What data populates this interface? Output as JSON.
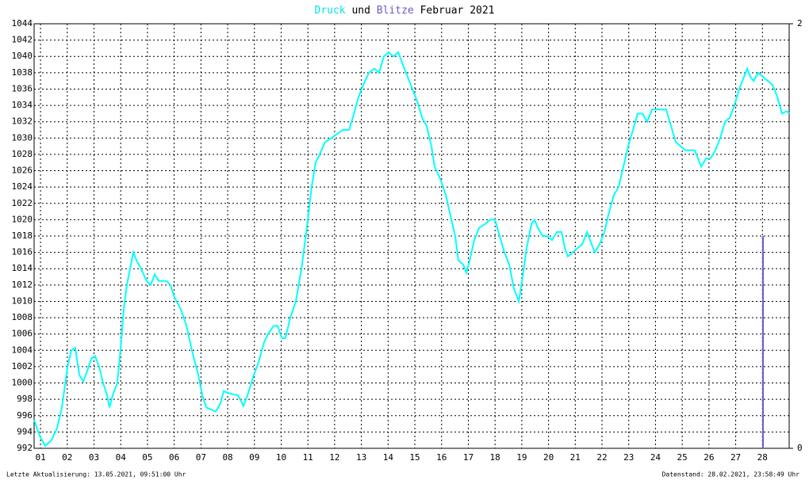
{
  "chart_data": {
    "type": "line",
    "title": "Februar 2021",
    "title_joiner": "und",
    "footer_left": "Letzte Aktualisierung: 13.05.2021, 09:51:00 Uhr",
    "footer_right": "Datenstand: 28.02.2021, 23:58:49 Uhr",
    "grid": true,
    "xlim": [
      0.76,
      29
    ],
    "xticks": [
      {
        "value": 1,
        "label": "01"
      },
      {
        "value": 2,
        "label": "02"
      },
      {
        "value": 3,
        "label": "03"
      },
      {
        "value": 4,
        "label": "04"
      },
      {
        "value": 5,
        "label": "05"
      },
      {
        "value": 6,
        "label": "06"
      },
      {
        "value": 7,
        "label": "07"
      },
      {
        "value": 8,
        "label": "08"
      },
      {
        "value": 9,
        "label": "09"
      },
      {
        "value": 10,
        "label": "10"
      },
      {
        "value": 11,
        "label": "11"
      },
      {
        "value": 12,
        "label": "12"
      },
      {
        "value": 13,
        "label": "13"
      },
      {
        "value": 14,
        "label": "14"
      },
      {
        "value": 15,
        "label": "15"
      },
      {
        "value": 16,
        "label": "16"
      },
      {
        "value": 17,
        "label": "17"
      },
      {
        "value": 18,
        "label": "18"
      },
      {
        "value": 19,
        "label": "19"
      },
      {
        "value": 20,
        "label": "20"
      },
      {
        "value": 21,
        "label": "21"
      },
      {
        "value": 22,
        "label": "22"
      },
      {
        "value": 23,
        "label": "23"
      },
      {
        "value": 24,
        "label": "24"
      },
      {
        "value": 25,
        "label": "25"
      },
      {
        "value": 26,
        "label": "26"
      },
      {
        "value": 27,
        "label": "27"
      },
      {
        "value": 28,
        "label": "28"
      }
    ],
    "ylim": [
      992,
      1044
    ],
    "yticks": [
      992,
      994,
      996,
      998,
      1000,
      1002,
      1004,
      1006,
      1008,
      1010,
      1012,
      1014,
      1016,
      1018,
      1020,
      1022,
      1024,
      1026,
      1028,
      1030,
      1032,
      1034,
      1036,
      1038,
      1040,
      1042,
      1044
    ],
    "y2lim": [
      0,
      2
    ],
    "y2ticks": [
      0,
      2
    ],
    "x": [
      0.76,
      0.97,
      1.18,
      1.41,
      1.62,
      1.8,
      2.01,
      2.15,
      2.3,
      2.45,
      2.6,
      2.75,
      2.9,
      3.04,
      3.19,
      3.34,
      3.49,
      3.58,
      3.7,
      3.87,
      3.99,
      4.11,
      4.23,
      4.38,
      4.47,
      4.59,
      4.76,
      4.97,
      5.12,
      5.27,
      5.42,
      5.71,
      5.86,
      6.01,
      6.25,
      6.46,
      6.66,
      6.9,
      7.05,
      7.2,
      7.35,
      7.55,
      7.73,
      7.85,
      8.09,
      8.38,
      8.59,
      8.74,
      8.98,
      9.15,
      9.36,
      9.51,
      9.72,
      9.87,
      10.02,
      10.16,
      10.34,
      10.55,
      10.76,
      10.96,
      11.14,
      11.29,
      11.44,
      11.64,
      11.88,
      12.09,
      12.3,
      12.54,
      12.68,
      12.89,
      13.07,
      13.28,
      13.49,
      13.66,
      13.84,
      14.02,
      14.2,
      14.38,
      14.55,
      14.73,
      14.91,
      15.09,
      15.27,
      15.44,
      15.62,
      15.74,
      15.95,
      16.16,
      16.33,
      16.51,
      16.63,
      16.81,
      16.93,
      17.05,
      17.22,
      17.4,
      17.64,
      17.82,
      18.0,
      18.17,
      18.35,
      18.53,
      18.71,
      18.89,
      19.01,
      19.18,
      19.36,
      19.48,
      19.6,
      19.78,
      19.95,
      20.13,
      20.31,
      20.49,
      20.61,
      20.72,
      20.9,
      21.08,
      21.26,
      21.44,
      21.61,
      21.73,
      21.91,
      22.09,
      22.27,
      22.44,
      22.62,
      22.8,
      22.98,
      23.16,
      23.33,
      23.51,
      23.69,
      23.87,
      24.05,
      24.22,
      24.4,
      24.58,
      24.76,
      24.94,
      25.11,
      25.29,
      25.47,
      25.59,
      25.71,
      25.89,
      26.06,
      26.24,
      26.42,
      26.6,
      26.78,
      26.95,
      27.13,
      27.31,
      27.43,
      27.55,
      27.67,
      27.84,
      28.02,
      28.2,
      28.38,
      28.56,
      28.73,
      28.91,
      29.0
    ],
    "series": [
      {
        "name": "Druck",
        "color": "#00ffff",
        "values": [
          995.5,
          993.5,
          992.3,
          993,
          994.5,
          997,
          1002,
          1004,
          1004.3,
          1001,
          1000.2,
          1001.5,
          1003,
          1003.3,
          1002,
          1000,
          998.5,
          997,
          998.5,
          1000,
          1004,
          1009,
          1012,
          1014.5,
          1016,
          1015,
          1014,
          1012.5,
          1012,
          1013.3,
          1012.5,
          1012.5,
          1012,
          1010.5,
          1009,
          1007,
          1004,
          1001,
          998.5,
          997,
          996.8,
          996.5,
          997.5,
          999,
          998.7,
          998.5,
          997.2,
          998.5,
          1001,
          1002.5,
          1005,
          1006,
          1007,
          1007,
          1005.5,
          1005.5,
          1008,
          1010,
          1014,
          1019,
          1024,
          1027,
          1028,
          1029.5,
          1030,
          1030.5,
          1031,
          1031,
          1032.5,
          1035,
          1036.5,
          1038,
          1038.5,
          1038,
          1040,
          1040.5,
          1040,
          1040.5,
          1039,
          1037.5,
          1036,
          1034.5,
          1032.5,
          1031.5,
          1029,
          1026.5,
          1025,
          1023,
          1020.5,
          1018,
          1015,
          1014.5,
          1013.5,
          1015,
          1017.5,
          1019,
          1019.5,
          1020,
          1020,
          1018,
          1016,
          1014.5,
          1011.5,
          1010,
          1012.5,
          1016.5,
          1019.5,
          1020,
          1019,
          1018,
          1018,
          1017.5,
          1018.5,
          1018.5,
          1016.5,
          1015.5,
          1016,
          1016.5,
          1017,
          1018.5,
          1017,
          1016,
          1017,
          1018.5,
          1021,
          1023,
          1024,
          1026.5,
          1029,
          1031,
          1033,
          1033,
          1032,
          1033.5,
          1033.5,
          1033.5,
          1033.5,
          1031.5,
          1029.5,
          1029,
          1028.5,
          1028.5,
          1028.5,
          1027.5,
          1026.5,
          1027.5,
          1027.5,
          1028.5,
          1030,
          1032,
          1032.5,
          1034,
          1036,
          1037.5,
          1038.5,
          1037.5,
          1037,
          1038,
          1037.5,
          1037,
          1036.5,
          1035,
          1033,
          1033.3,
          1033
        ]
      },
      {
        "name": "Blitze",
        "color": "#6a5acd",
        "axis": "y2",
        "type": "bar",
        "x": [
          28.02
        ],
        "values": [
          1
        ]
      }
    ]
  }
}
